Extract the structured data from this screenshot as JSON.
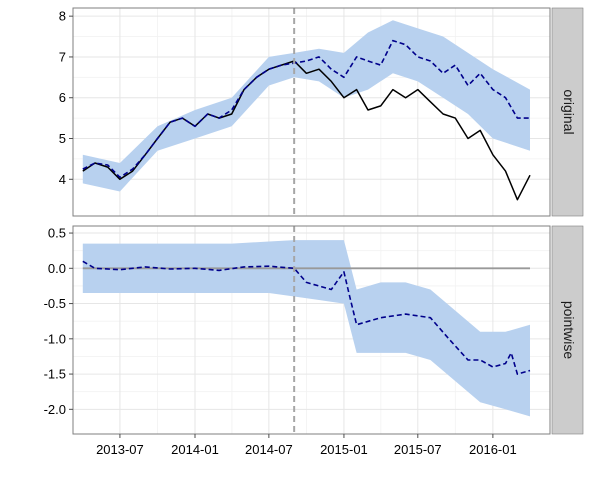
{
  "chart_data": {
    "type": "line",
    "x_ticks": [
      "2013-07",
      "2014-01",
      "2014-07",
      "2015-01",
      "2015-07",
      "2016-01"
    ],
    "intervention_date": "2014-09-01",
    "panels": [
      {
        "strip_label": "original",
        "y_ticks": [
          4,
          5,
          6,
          7,
          8
        ],
        "ylim": [
          3.1,
          8.2
        ],
        "series": [
          {
            "role": "observed",
            "color": "#000000",
            "dates": [
              "2013-04-01",
              "2013-05-01",
              "2013-06-01",
              "2013-07-01",
              "2013-08-01",
              "2013-09-01",
              "2013-10-01",
              "2013-11-01",
              "2013-12-01",
              "2014-01-01",
              "2014-02-01",
              "2014-03-01",
              "2014-04-01",
              "2014-05-01",
              "2014-06-01",
              "2014-07-01",
              "2014-08-01",
              "2014-09-01",
              "2014-10-01",
              "2014-11-01",
              "2014-12-01",
              "2015-01-01",
              "2015-02-01",
              "2015-03-01",
              "2015-04-01",
              "2015-05-01",
              "2015-06-01",
              "2015-07-01",
              "2015-08-01",
              "2015-09-01",
              "2015-10-01",
              "2015-11-01",
              "2015-12-01",
              "2016-01-01",
              "2016-02-01",
              "2016-03-01",
              "2016-04-01"
            ],
            "values": [
              4.2,
              4.4,
              4.3,
              4.0,
              4.2,
              4.6,
              5.0,
              5.4,
              5.5,
              5.3,
              5.6,
              5.5,
              5.6,
              6.2,
              6.5,
              6.7,
              6.8,
              6.9,
              6.6,
              6.7,
              6.4,
              6.0,
              6.2,
              5.7,
              5.8,
              6.2,
              6.0,
              6.2,
              5.9,
              5.6,
              5.5,
              5.0,
              5.2,
              4.6,
              4.2,
              3.5,
              4.1
            ]
          },
          {
            "role": "predicted",
            "color": "#00008b",
            "dates": [
              "2013-04-01",
              "2013-05-01",
              "2013-06-01",
              "2013-07-01",
              "2013-08-01",
              "2013-09-01",
              "2013-10-01",
              "2013-11-01",
              "2013-12-01",
              "2014-01-01",
              "2014-02-01",
              "2014-03-01",
              "2014-04-01",
              "2014-05-01",
              "2014-06-01",
              "2014-07-01",
              "2014-08-01",
              "2014-09-01",
              "2014-10-01",
              "2014-11-01",
              "2014-12-01",
              "2015-01-01",
              "2015-02-01",
              "2015-03-01",
              "2015-04-01",
              "2015-05-01",
              "2015-06-01",
              "2015-07-01",
              "2015-08-01",
              "2015-09-01",
              "2015-10-01",
              "2015-11-01",
              "2015-12-01",
              "2016-01-01",
              "2016-02-01",
              "2016-03-01",
              "2016-04-01"
            ],
            "values": [
              4.25,
              4.4,
              4.35,
              4.05,
              4.25,
              4.6,
              5.0,
              5.4,
              5.5,
              5.3,
              5.6,
              5.5,
              5.7,
              6.2,
              6.5,
              6.7,
              6.8,
              6.85,
              6.9,
              7.0,
              6.7,
              6.5,
              7.0,
              6.9,
              6.8,
              7.4,
              7.3,
              7.0,
              6.9,
              6.6,
              6.8,
              6.3,
              6.6,
              6.2,
              6.0,
              5.5,
              5.5
            ]
          }
        ],
        "band": {
          "color": "#b8d1ef",
          "dates": [
            "2013-04-01",
            "2013-07-01",
            "2013-10-01",
            "2014-01-01",
            "2014-04-01",
            "2014-07-01",
            "2014-09-01",
            "2014-11-01",
            "2015-01-01",
            "2015-03-01",
            "2015-05-01",
            "2015-07-01",
            "2015-09-01",
            "2015-11-01",
            "2016-01-01",
            "2016-04-01"
          ],
          "lower": [
            3.9,
            3.7,
            4.7,
            5.0,
            5.3,
            6.3,
            6.5,
            6.4,
            6.0,
            6.2,
            6.6,
            6.4,
            6.0,
            5.6,
            5.0,
            4.7
          ],
          "upper": [
            4.6,
            4.4,
            5.3,
            5.7,
            6.0,
            7.0,
            7.1,
            7.2,
            7.1,
            7.6,
            7.9,
            7.7,
            7.5,
            7.1,
            6.7,
            6.2
          ]
        }
      },
      {
        "strip_label": "pointwise",
        "y_ticks": [
          -2.0,
          -1.5,
          -1.0,
          -0.5,
          0.0,
          0.5
        ],
        "y_tick_labels": [
          "-2.0",
          "-1.5",
          "-1.0",
          "-0.5",
          "0.0",
          "0.5"
        ],
        "ylim": [
          -2.35,
          0.6
        ],
        "zero_line": {
          "value": 0,
          "color": "#999999"
        },
        "series": [
          {
            "role": "pointwise effect",
            "color": "#00008b",
            "dates": [
              "2013-04-01",
              "2013-05-01",
              "2013-07-01",
              "2013-09-01",
              "2013-11-01",
              "2014-01-01",
              "2014-03-01",
              "2014-05-01",
              "2014-07-01",
              "2014-09-01",
              "2014-10-01",
              "2014-12-01",
              "2015-01-01",
              "2015-01-15",
              "2015-02-01",
              "2015-04-01",
              "2015-06-01",
              "2015-08-01",
              "2015-09-15",
              "2015-11-01",
              "2015-12-01",
              "2016-01-01",
              "2016-02-01",
              "2016-02-15",
              "2016-03-01",
              "2016-04-01"
            ],
            "values": [
              0.1,
              0.0,
              -0.02,
              0.02,
              -0.01,
              0.0,
              -0.03,
              0.02,
              0.03,
              0.0,
              -0.2,
              -0.3,
              -0.05,
              -0.4,
              -0.8,
              -0.7,
              -0.65,
              -0.7,
              -1.0,
              -1.3,
              -1.3,
              -1.4,
              -1.35,
              -1.2,
              -1.5,
              -1.45
            ]
          }
        ],
        "band": {
          "color": "#b8d1ef",
          "dates": [
            "2013-04-01",
            "2013-07-01",
            "2013-10-01",
            "2014-01-01",
            "2014-04-01",
            "2014-07-01",
            "2014-09-01",
            "2014-11-01",
            "2015-01-01",
            "2015-02-01",
            "2015-04-01",
            "2015-06-01",
            "2015-08-01",
            "2015-10-01",
            "2015-12-01",
            "2016-02-01",
            "2016-04-01"
          ],
          "lower": [
            -0.35,
            -0.35,
            -0.35,
            -0.35,
            -0.35,
            -0.35,
            -0.4,
            -0.45,
            -0.5,
            -1.2,
            -1.2,
            -1.2,
            -1.3,
            -1.6,
            -1.9,
            -2.0,
            -2.1
          ],
          "upper": [
            0.35,
            0.35,
            0.35,
            0.35,
            0.35,
            0.38,
            0.4,
            0.4,
            0.4,
            -0.3,
            -0.2,
            -0.2,
            -0.3,
            -0.6,
            -0.9,
            -0.9,
            -0.8
          ]
        }
      }
    ],
    "grid": true,
    "vline_color": "#a6a6a6",
    "strip_color": "#cccccc"
  }
}
